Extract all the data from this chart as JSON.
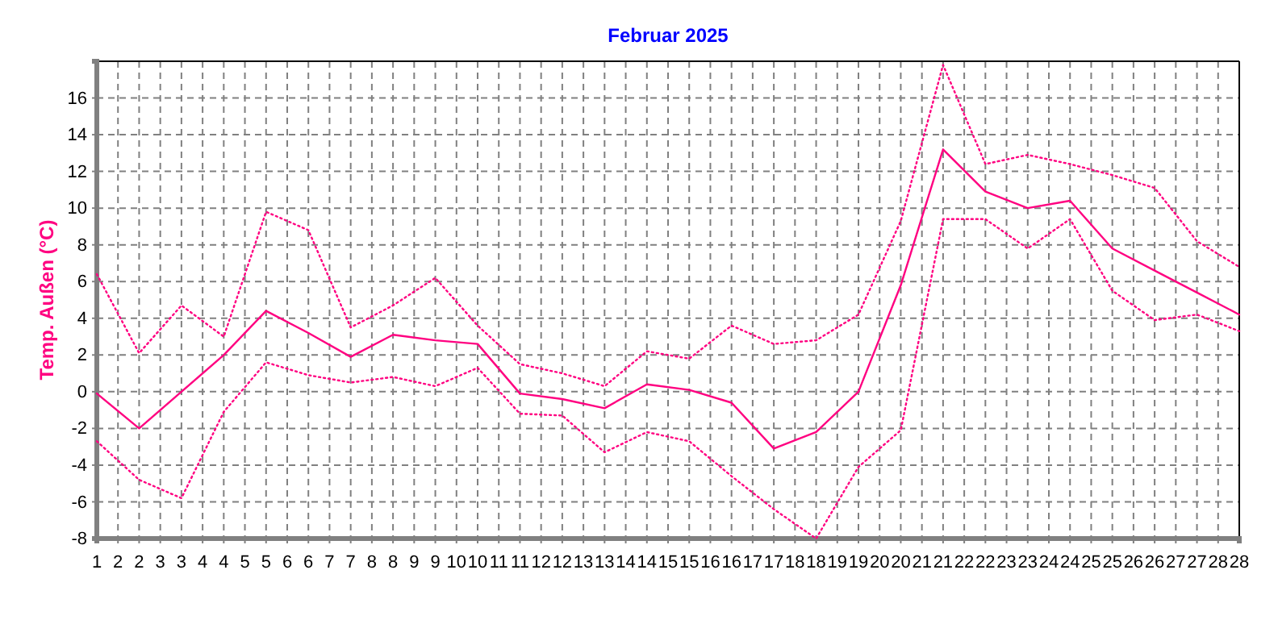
{
  "chart_data": {
    "type": "line",
    "title": "Februar 2025",
    "ylabel": "Temp. Außen (°C)",
    "x": [
      1,
      2,
      3,
      4,
      5,
      6,
      7,
      8,
      9,
      10,
      11,
      12,
      13,
      14,
      15,
      16,
      17,
      18,
      19,
      20,
      21,
      22,
      23,
      24,
      25,
      26,
      27,
      28
    ],
    "series": [
      {
        "color": "#ff0080",
        "line_style": "dotted",
        "values": [
          6.4,
          2.1,
          4.7,
          3.0,
          9.8,
          8.8,
          3.5,
          4.7,
          6.2,
          3.6,
          1.5,
          1.0,
          0.3,
          2.2,
          1.8,
          3.6,
          2.6,
          2.8,
          4.2,
          9.3,
          17.8,
          12.4,
          12.9,
          12.4,
          11.8,
          11.1,
          8.2,
          6.8
        ]
      },
      {
        "color": "#ff0080",
        "line_style": "solid",
        "values": [
          -0.1,
          -2.0,
          0.0,
          2.0,
          4.4,
          3.2,
          1.9,
          3.1,
          2.8,
          2.6,
          -0.1,
          -0.4,
          -0.9,
          0.4,
          0.1,
          -0.6,
          -3.1,
          -2.2,
          0.0,
          5.8,
          13.2,
          10.9,
          10.0,
          10.4,
          7.8,
          6.6,
          5.4,
          4.2
        ]
      },
      {
        "color": "#ff0080",
        "line_style": "dotted",
        "values": [
          -2.7,
          -4.8,
          -5.8,
          -1.1,
          1.6,
          0.9,
          0.5,
          0.8,
          0.3,
          1.3,
          -1.2,
          -1.3,
          -3.3,
          -2.2,
          -2.7,
          -4.6,
          -6.4,
          -8.0,
          -4.1,
          -2.1,
          9.4,
          9.4,
          7.8,
          9.4,
          5.5,
          3.9,
          4.2,
          3.3
        ]
      }
    ],
    "xlim": [
      1,
      28
    ],
    "xticks": [
      1,
      {
        "value": 1.5,
        "label": "2"
      },
      2,
      {
        "value": 2.5,
        "label": "3"
      },
      3,
      {
        "value": 3.5,
        "label": "4"
      },
      4,
      {
        "value": 4.5,
        "label": "5"
      },
      5,
      {
        "value": 5.5,
        "label": "6"
      },
      6,
      {
        "value": 6.5,
        "label": "7"
      },
      7,
      {
        "value": 7.5,
        "label": "8"
      },
      8,
      {
        "value": 8.5,
        "label": "9"
      },
      9,
      {
        "value": 9.5,
        "label": "10"
      },
      10,
      {
        "value": 10.5,
        "label": "11"
      },
      11,
      {
        "value": 11.5,
        "label": "12"
      },
      12,
      {
        "value": 12.5,
        "label": "13"
      },
      13,
      {
        "value": 13.5,
        "label": "14"
      },
      14,
      {
        "value": 14.5,
        "label": "15"
      },
      15,
      {
        "value": 15.5,
        "label": "16"
      },
      16,
      {
        "value": 16.5,
        "label": "17"
      },
      17,
      {
        "value": 17.5,
        "label": "18"
      },
      18,
      {
        "value": 18.5,
        "label": "19"
      },
      19,
      {
        "value": 19.5,
        "label": "20"
      },
      20,
      {
        "value": 20.5,
        "label": "21"
      },
      21,
      {
        "value": 21.5,
        "label": "22"
      },
      22,
      {
        "value": 22.5,
        "label": "23"
      },
      23,
      {
        "value": 23.5,
        "label": "24"
      },
      24,
      {
        "value": 24.5,
        "label": "25"
      },
      25,
      {
        "value": 25.5,
        "label": "26"
      },
      26,
      {
        "value": 26.5,
        "label": "27"
      },
      27,
      {
        "value": 27.5,
        "label": "28"
      },
      28
    ],
    "ylim": [
      -8,
      18
    ],
    "yticks": [
      -8,
      -6,
      -4,
      -2,
      0,
      2,
      4,
      6,
      8,
      10,
      12,
      14,
      16,
      {
        "value": 18,
        "label": null
      }
    ],
    "grid": true,
    "marker": "none"
  }
}
